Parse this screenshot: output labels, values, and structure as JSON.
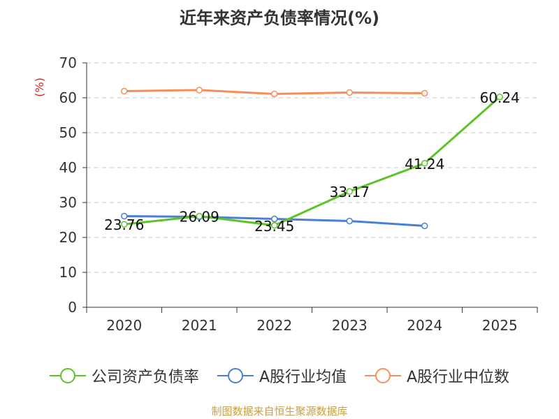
{
  "chart_data": {
    "type": "line",
    "title": "近年来资产负债率情况(%)",
    "ylabel": "(%)",
    "xlabel": "",
    "categories": [
      "2020",
      "2021",
      "2022",
      "2023",
      "2024",
      "2025"
    ],
    "ylim": [
      0,
      70
    ],
    "yticks": [
      0,
      10,
      20,
      30,
      40,
      50,
      60,
      70
    ],
    "grid": true,
    "legend_position": "bottom",
    "series": [
      {
        "name": "公司资产负债率",
        "color": "#5cc426",
        "values": [
          23.76,
          26.09,
          23.45,
          33.17,
          41.24,
          60.24
        ],
        "labels": [
          "23.76",
          "26.09",
          "23.45",
          "33.17",
          "41.24",
          "60.24"
        ]
      },
      {
        "name": "A股行业均值",
        "color": "#4a7fd8",
        "values": [
          26.1,
          25.9,
          25.3,
          24.7,
          23.3,
          null
        ]
      },
      {
        "name": "A股行业中位数",
        "color": "#f5905a",
        "values": [
          61.9,
          62.2,
          61.1,
          61.5,
          61.3,
          null
        ]
      }
    ]
  },
  "source_note": "制图数据来自恒生聚源数据库"
}
